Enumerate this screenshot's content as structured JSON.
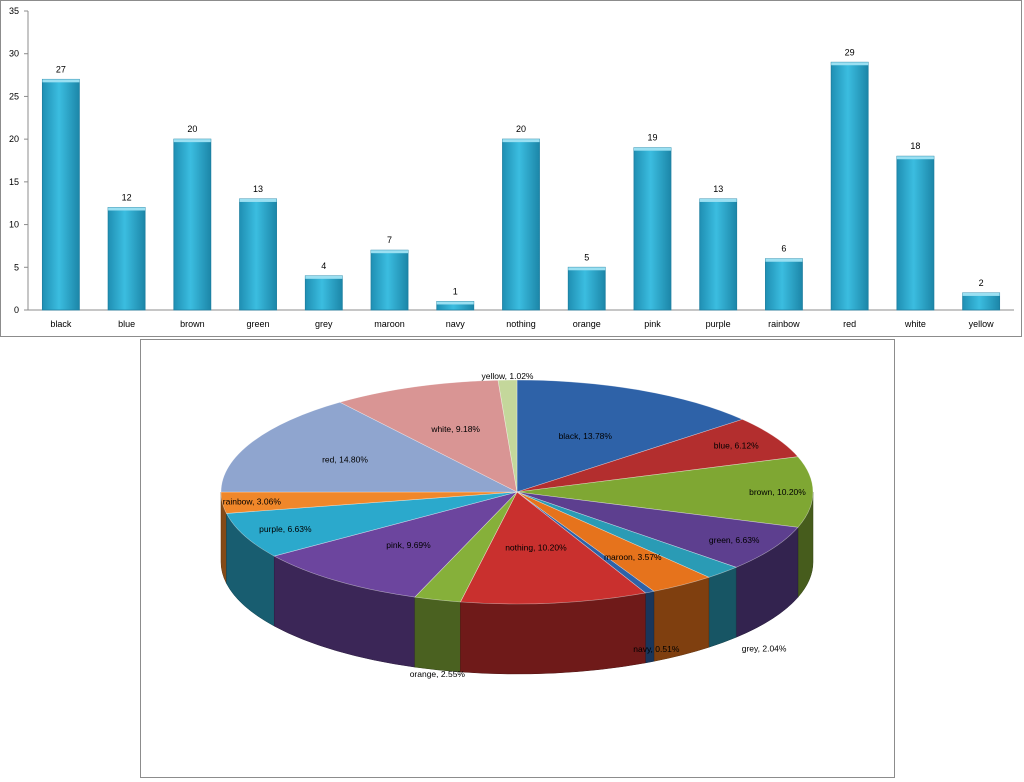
{
  "chart_data": [
    {
      "type": "bar",
      "categories": [
        "black",
        "blue",
        "brown",
        "green",
        "grey",
        "maroon",
        "navy",
        "nothing",
        "orange",
        "pink",
        "purple",
        "rainbow",
        "red",
        "white",
        "yellow"
      ],
      "values": [
        27,
        12,
        20,
        13,
        4,
        7,
        1,
        20,
        5,
        19,
        13,
        6,
        29,
        18,
        2
      ],
      "ylim": [
        0,
        35
      ],
      "yticks": [
        0,
        5,
        10,
        15,
        20,
        25,
        30,
        35
      ],
      "data_labels": true,
      "grid": false,
      "bar_color": "#3bbde0"
    },
    {
      "type": "pie",
      "style": "3d",
      "labels": [
        "black",
        "blue",
        "brown",
        "green",
        "grey",
        "maroon",
        "navy",
        "nothing",
        "orange",
        "pink",
        "purple",
        "rainbow",
        "red",
        "white",
        "yellow"
      ],
      "values": [
        27,
        12,
        20,
        13,
        4,
        7,
        1,
        20,
        5,
        19,
        13,
        6,
        29,
        18,
        2
      ],
      "slice_labels": [
        "black, 13.78%",
        "blue, 6.12%",
        "brown, 10.20%",
        "green, 6.63%",
        "grey, 2.04%",
        "maroon, 3.57%",
        "navy, 0.51%",
        "nothing, 10.20%",
        "orange, 2.55%",
        "pink, 9.69%",
        "purple, 6.63%",
        "rainbow, 3.06%",
        "red, 14.80%",
        "white, 9.18%",
        "yellow, 1.02%"
      ],
      "colors": [
        "#2e62a8",
        "#b32e2e",
        "#7fa733",
        "#5d3f8f",
        "#2a9bb5",
        "#e6731c",
        "#2e62a8",
        "#c9302e",
        "#86b03a",
        "#6c459e",
        "#2ba9cc",
        "#f0872a",
        "#8fa5cf",
        "#d99594",
        "#c4d79b"
      ]
    }
  ]
}
